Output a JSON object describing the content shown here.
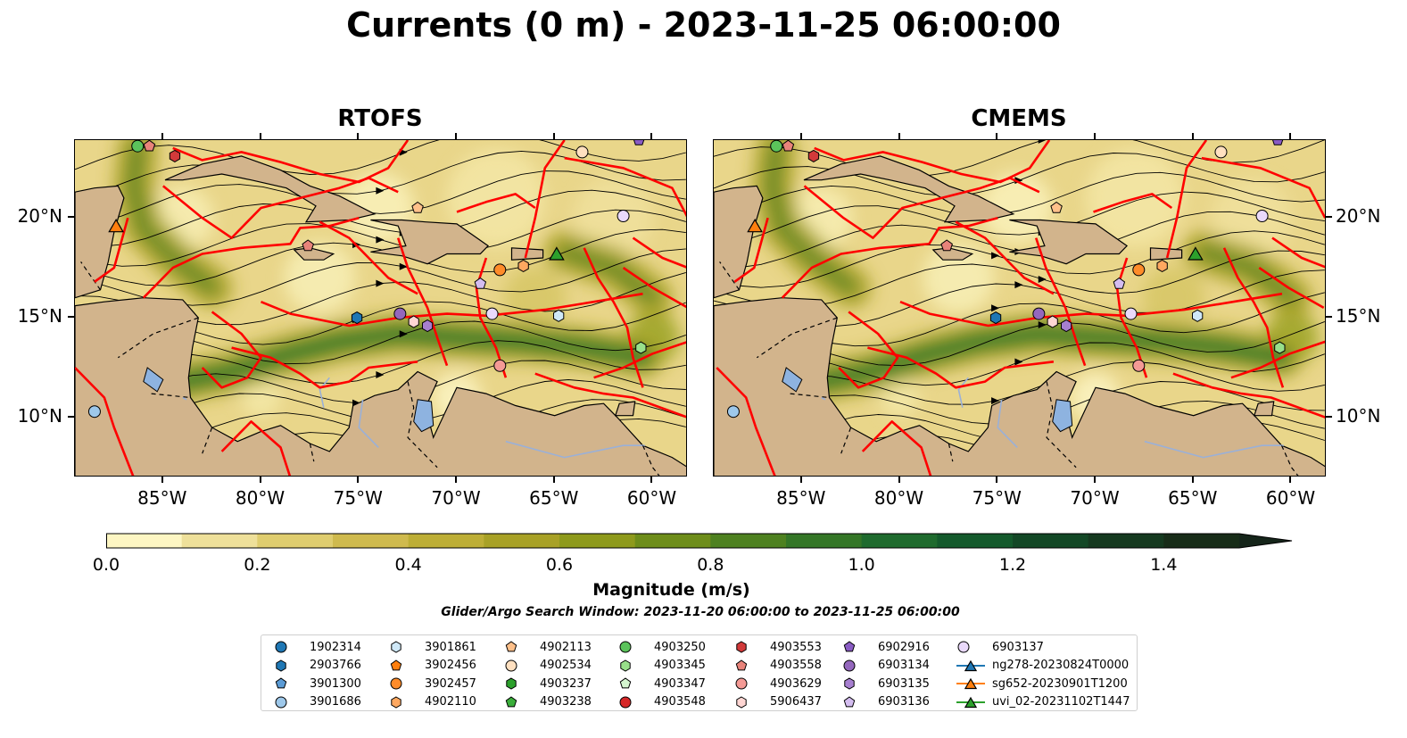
{
  "figure": {
    "title": "Currents (0 m) - 2023-11-25 06:00:00",
    "search_window": "Glider/Argo Search Window: 2023-11-20 06:00:00 to 2023-11-25 06:00:00"
  },
  "chart_data": {
    "type": "map",
    "panels": [
      {
        "name": "RTOFS"
      },
      {
        "name": "CMEMS"
      }
    ],
    "extent": {
      "lon": [
        -89.5,
        -58.2
      ],
      "lat": [
        7.0,
        23.9
      ]
    },
    "lon_ticks": [
      {
        "value": -85,
        "label": "85°W"
      },
      {
        "value": -80,
        "label": "80°W"
      },
      {
        "value": -75,
        "label": "75°W"
      },
      {
        "value": -70,
        "label": "70°W"
      },
      {
        "value": -65,
        "label": "65°W"
      },
      {
        "value": -60,
        "label": "60°W"
      }
    ],
    "lat_ticks": [
      {
        "value": 20,
        "label": "20°N"
      },
      {
        "value": 15,
        "label": "15°N"
      },
      {
        "value": 10,
        "label": "10°N"
      }
    ],
    "colorbar": {
      "label": "Magnitude (m/s)",
      "range": [
        0.0,
        1.5
      ],
      "extend": "max",
      "ticks": [
        "0.0",
        "0.2",
        "0.4",
        "0.6",
        "0.8",
        "1.0",
        "1.2",
        "1.4"
      ],
      "tick_values": [
        0.0,
        0.2,
        0.4,
        0.6,
        0.8,
        1.0,
        1.2,
        1.4
      ],
      "colors": [
        "#fdf6c3",
        "#eee09a",
        "#dfcd6f",
        "#cfba4e",
        "#bdae36",
        "#a8a126",
        "#8e9a1c",
        "#6e8d1a",
        "#4e8120",
        "#347627",
        "#1f6b2e",
        "#145a2c",
        "#134826",
        "#15391f",
        "#172c18"
      ]
    },
    "colors": {
      "land": "#d2b48c",
      "boundary": "#ff0000",
      "lake": "#8eb3e0",
      "river": "#9ab0d8"
    },
    "observations": [
      {
        "id": "1902314",
        "marker": "circle",
        "color": "#1f77b4"
      },
      {
        "id": "2903766",
        "marker": "hexagon",
        "color": "#1f77b4"
      },
      {
        "id": "3901300",
        "marker": "pentagon",
        "color": "#5b9bd5"
      },
      {
        "id": "3901686",
        "marker": "circle",
        "color": "#9ec8ea"
      },
      {
        "id": "3901861",
        "marker": "hexagon",
        "color": "#cfe8f7"
      },
      {
        "id": "3902456",
        "marker": "pentagon",
        "color": "#ff7f0e"
      },
      {
        "id": "3902457",
        "marker": "circle",
        "color": "#ff8c2a"
      },
      {
        "id": "4902110",
        "marker": "hexagon",
        "color": "#ffa860"
      },
      {
        "id": "4902113",
        "marker": "pentagon",
        "color": "#ffc08a"
      },
      {
        "id": "4902534",
        "marker": "circle",
        "color": "#ffe0c0"
      },
      {
        "id": "4903237",
        "marker": "hexagon",
        "color": "#2ca02c"
      },
      {
        "id": "4903238",
        "marker": "pentagon",
        "color": "#3aae3a"
      },
      {
        "id": "4903250",
        "marker": "circle",
        "color": "#5bc35b"
      },
      {
        "id": "4903345",
        "marker": "hexagon",
        "color": "#98df8a"
      },
      {
        "id": "4903347",
        "marker": "pentagon",
        "color": "#d4f5cf"
      },
      {
        "id": "4903548",
        "marker": "circle",
        "color": "#d62728"
      },
      {
        "id": "4903553",
        "marker": "hexagon",
        "color": "#d23a3a"
      },
      {
        "id": "4903558",
        "marker": "pentagon",
        "color": "#e8837a"
      },
      {
        "id": "4903629",
        "marker": "circle",
        "color": "#f49a95"
      },
      {
        "id": "5906437",
        "marker": "hexagon",
        "color": "#ffd6d3"
      },
      {
        "id": "6902916",
        "marker": "pentagon",
        "color": "#8a5cc4"
      },
      {
        "id": "6903134",
        "marker": "circle",
        "color": "#9467bd"
      },
      {
        "id": "6903135",
        "marker": "hexagon",
        "color": "#a77fd0"
      },
      {
        "id": "6903136",
        "marker": "pentagon",
        "color": "#d4bdf0"
      },
      {
        "id": "6903137",
        "marker": "circle",
        "color": "#ead9fb"
      },
      {
        "id": "ng278-20230824T0000",
        "marker": "triangle",
        "color": "#1f77b4"
      },
      {
        "id": "sg652-20230901T1200",
        "marker": "triangle",
        "color": "#ff7f0e"
      },
      {
        "id": "uvi_02-20231102T1447",
        "marker": "triangle",
        "color": "#2ca02c"
      }
    ],
    "observation_positions": [
      {
        "id": "3901686",
        "lon": -88.5,
        "lat": 10.3
      },
      {
        "id": "sg652-20230901T1200",
        "lon": -87.4,
        "lat": 19.6
      },
      {
        "id": "4903250",
        "lon": -86.3,
        "lat": 23.6
      },
      {
        "id": "4903558",
        "lon": -85.7,
        "lat": 23.6
      },
      {
        "id": "4903553",
        "lon": -84.4,
        "lat": 23.1
      },
      {
        "id": "4903558",
        "lon": -77.6,
        "lat": 18.6
      },
      {
        "id": "2903766",
        "lon": -75.1,
        "lat": 15.0
      },
      {
        "id": "4902113",
        "lon": -72.0,
        "lat": 20.5
      },
      {
        "id": "6903134",
        "lon": -72.9,
        "lat": 15.2
      },
      {
        "id": "5906437",
        "lon": -72.2,
        "lat": 14.8
      },
      {
        "id": "6903135",
        "lon": -71.5,
        "lat": 14.6
      },
      {
        "id": "6903136",
        "lon": -68.8,
        "lat": 16.7
      },
      {
        "id": "6903137",
        "lon": -68.2,
        "lat": 15.2
      },
      {
        "id": "3902457",
        "lon": -67.8,
        "lat": 17.4
      },
      {
        "id": "4902110",
        "lon": -66.6,
        "lat": 17.6
      },
      {
        "id": "4903629",
        "lon": -67.8,
        "lat": 12.6
      },
      {
        "id": "uvi_02-20231102T1447",
        "lon": -64.9,
        "lat": 18.2
      },
      {
        "id": "3901861",
        "lon": -64.8,
        "lat": 15.1
      },
      {
        "id": "4903345",
        "lon": -60.6,
        "lat": 13.5
      },
      {
        "id": "6903137",
        "lon": -61.5,
        "lat": 20.1
      },
      {
        "id": "4902534",
        "lon": -63.6,
        "lat": 23.3
      },
      {
        "id": "6902916",
        "lon": -60.7,
        "lat": 23.9
      }
    ]
  }
}
